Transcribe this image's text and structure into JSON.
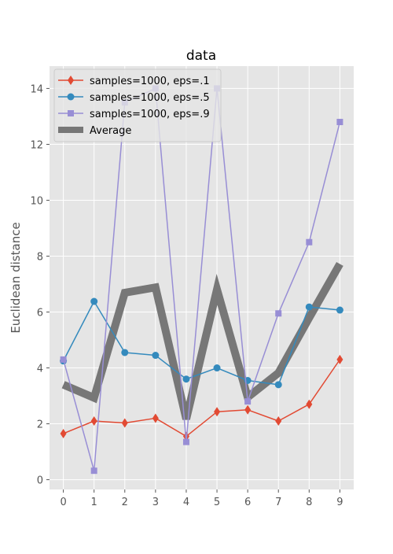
{
  "chart_data": {
    "type": "line",
    "title": "data",
    "xlabel": "",
    "ylabel": "Euclidean distance",
    "x": [
      0,
      1,
      2,
      3,
      4,
      5,
      6,
      7,
      8,
      9
    ],
    "xticks": [
      "0",
      "1",
      "2",
      "3",
      "4",
      "5",
      "6",
      "7",
      "8",
      "9"
    ],
    "yticks": [
      "0",
      "2",
      "4",
      "6",
      "8",
      "10",
      "12",
      "14"
    ],
    "xlim": [
      -0.45,
      9.45
    ],
    "ylim": [
      -0.35,
      14.8
    ],
    "grid": true,
    "legend_position": "top-left",
    "series": [
      {
        "name": "samples=1000, eps=.1",
        "color": "#E24A33",
        "marker": "diamond",
        "values": [
          1.65,
          2.1,
          2.03,
          2.2,
          1.55,
          2.43,
          2.5,
          2.1,
          2.7,
          4.3
        ]
      },
      {
        "name": "samples=1000, eps=.5",
        "color": "#348ABD",
        "marker": "circle",
        "values": [
          4.25,
          6.38,
          4.55,
          4.45,
          3.6,
          4.0,
          3.55,
          3.4,
          6.18,
          6.07
        ]
      },
      {
        "name": "samples=1000, eps=.9",
        "color": "#988ED5",
        "marker": "square",
        "values": [
          4.3,
          0.32,
          13.5,
          14.0,
          1.35,
          14.0,
          2.8,
          5.95,
          8.5,
          12.8
        ]
      },
      {
        "name": "Average",
        "color": "#777777",
        "marker": "none",
        "values": [
          3.4,
          2.93,
          6.69,
          6.88,
          2.17,
          6.81,
          2.95,
          3.82,
          5.79,
          7.72
        ]
      }
    ]
  }
}
